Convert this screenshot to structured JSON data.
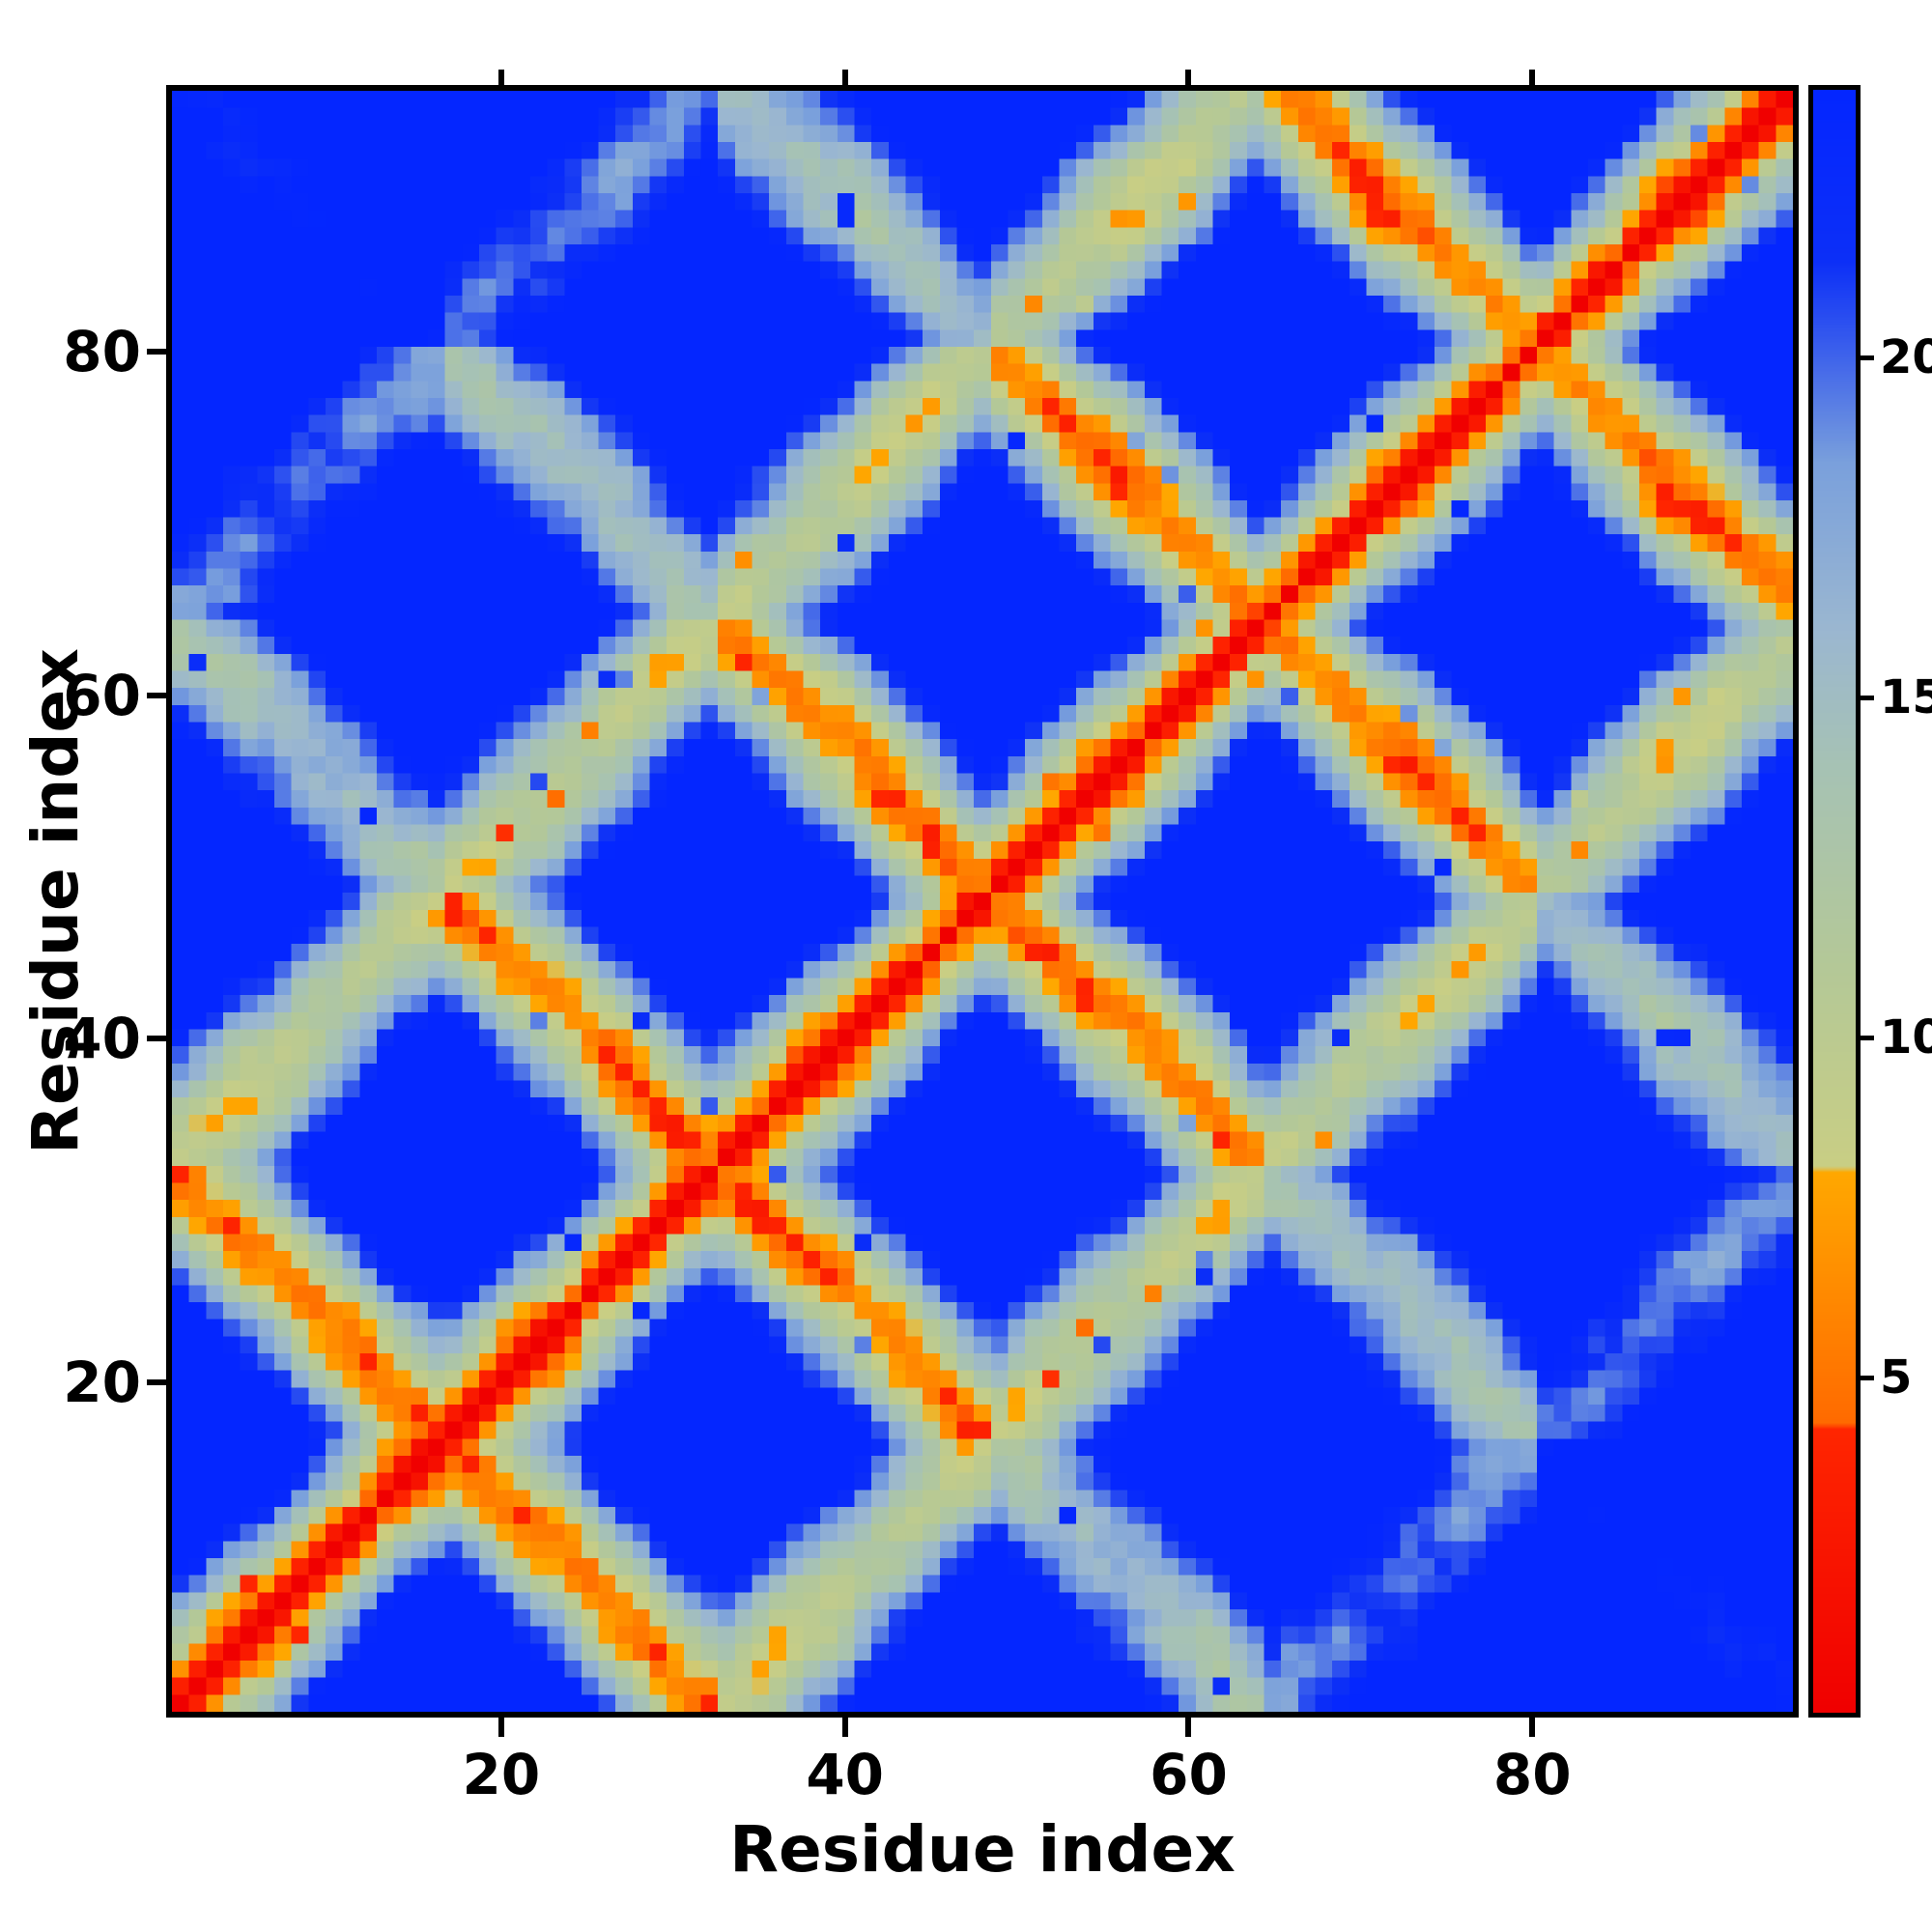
{
  "chart_data": {
    "type": "heatmap",
    "title": "",
    "xlabel": "Residue index",
    "ylabel": "Residue index",
    "n": 95,
    "x_range": [
      1,
      95
    ],
    "y_range": [
      1,
      95
    ],
    "x_ticks": [
      20,
      40,
      60,
      80
    ],
    "y_ticks": [
      20,
      40,
      60,
      80
    ],
    "grid": false,
    "legend": false,
    "colorbar": {
      "position": "right",
      "orientation": "vertical",
      "range": [
        0,
        24
      ],
      "ticks": [
        5,
        10,
        15,
        20
      ]
    },
    "colormap": {
      "name": "distance-map (red = near, orange = contact, green/pale-blue = intermediate, deep blue = far)",
      "stops": [
        {
          "v": 0,
          "c": "#f00000"
        },
        {
          "v": 4.2,
          "c": "#ff2600"
        },
        {
          "v": 4.25,
          "c": "#ff6a00"
        },
        {
          "v": 8.0,
          "c": "#ffa800"
        },
        {
          "v": 8.05,
          "c": "#c9ce84"
        },
        {
          "v": 11,
          "c": "#b4c897"
        },
        {
          "v": 14,
          "c": "#a6c2b4"
        },
        {
          "v": 16,
          "c": "#9bb7d0"
        },
        {
          "v": 18.5,
          "c": "#7aa0dc"
        },
        {
          "v": 20.5,
          "c": "#2f53ef"
        },
        {
          "v": 21.5,
          "c": "#0c2ff7"
        },
        {
          "v": 24,
          "c": "#0426ff"
        }
      ]
    },
    "values_model": {
      "description": "Symmetric 95x95 residue-residue distance matrix (Angstrom). Reconstructed from the image: red band of width ~3 cells along the main diagonal (sequence-local distances < ~4.5 A); orange anti-diagonal hairpin ridges crossing the diagonal near residues ~16, ~32, ~48, ~64 and ~80; sage-green and pale-blue intermediate regions (~8-18 A) with sparse orange contact dots and sparse dark-blue outliers; large deep-blue diamond-shaped regions for distal segments (>= ~20 A). Generated as an antiparallel zigzag chain: strand period 16 residues, in-strand step 3.3 A, inter-strand gap 4.8 A, smooth positional noise plus seeded pairwise jitter.",
      "period": 16,
      "step": 3.3,
      "gap": 4.8,
      "noise_amp": 1.0,
      "jitter": 1.6,
      "seed": 7,
      "diagonal_value": 0
    },
    "features": [
      "thick red main diagonal (self/near-sequence distances)",
      "orange anti-diagonal ridges forming X patterns at the diagonal near residues 16, 32, 48, 64, 80",
      "deep blue diamond blobs on and off the diagonal (distant strand pairs)",
      "scattered single orange contact pixels and single dark-blue pixels in the green regions"
    ]
  }
}
